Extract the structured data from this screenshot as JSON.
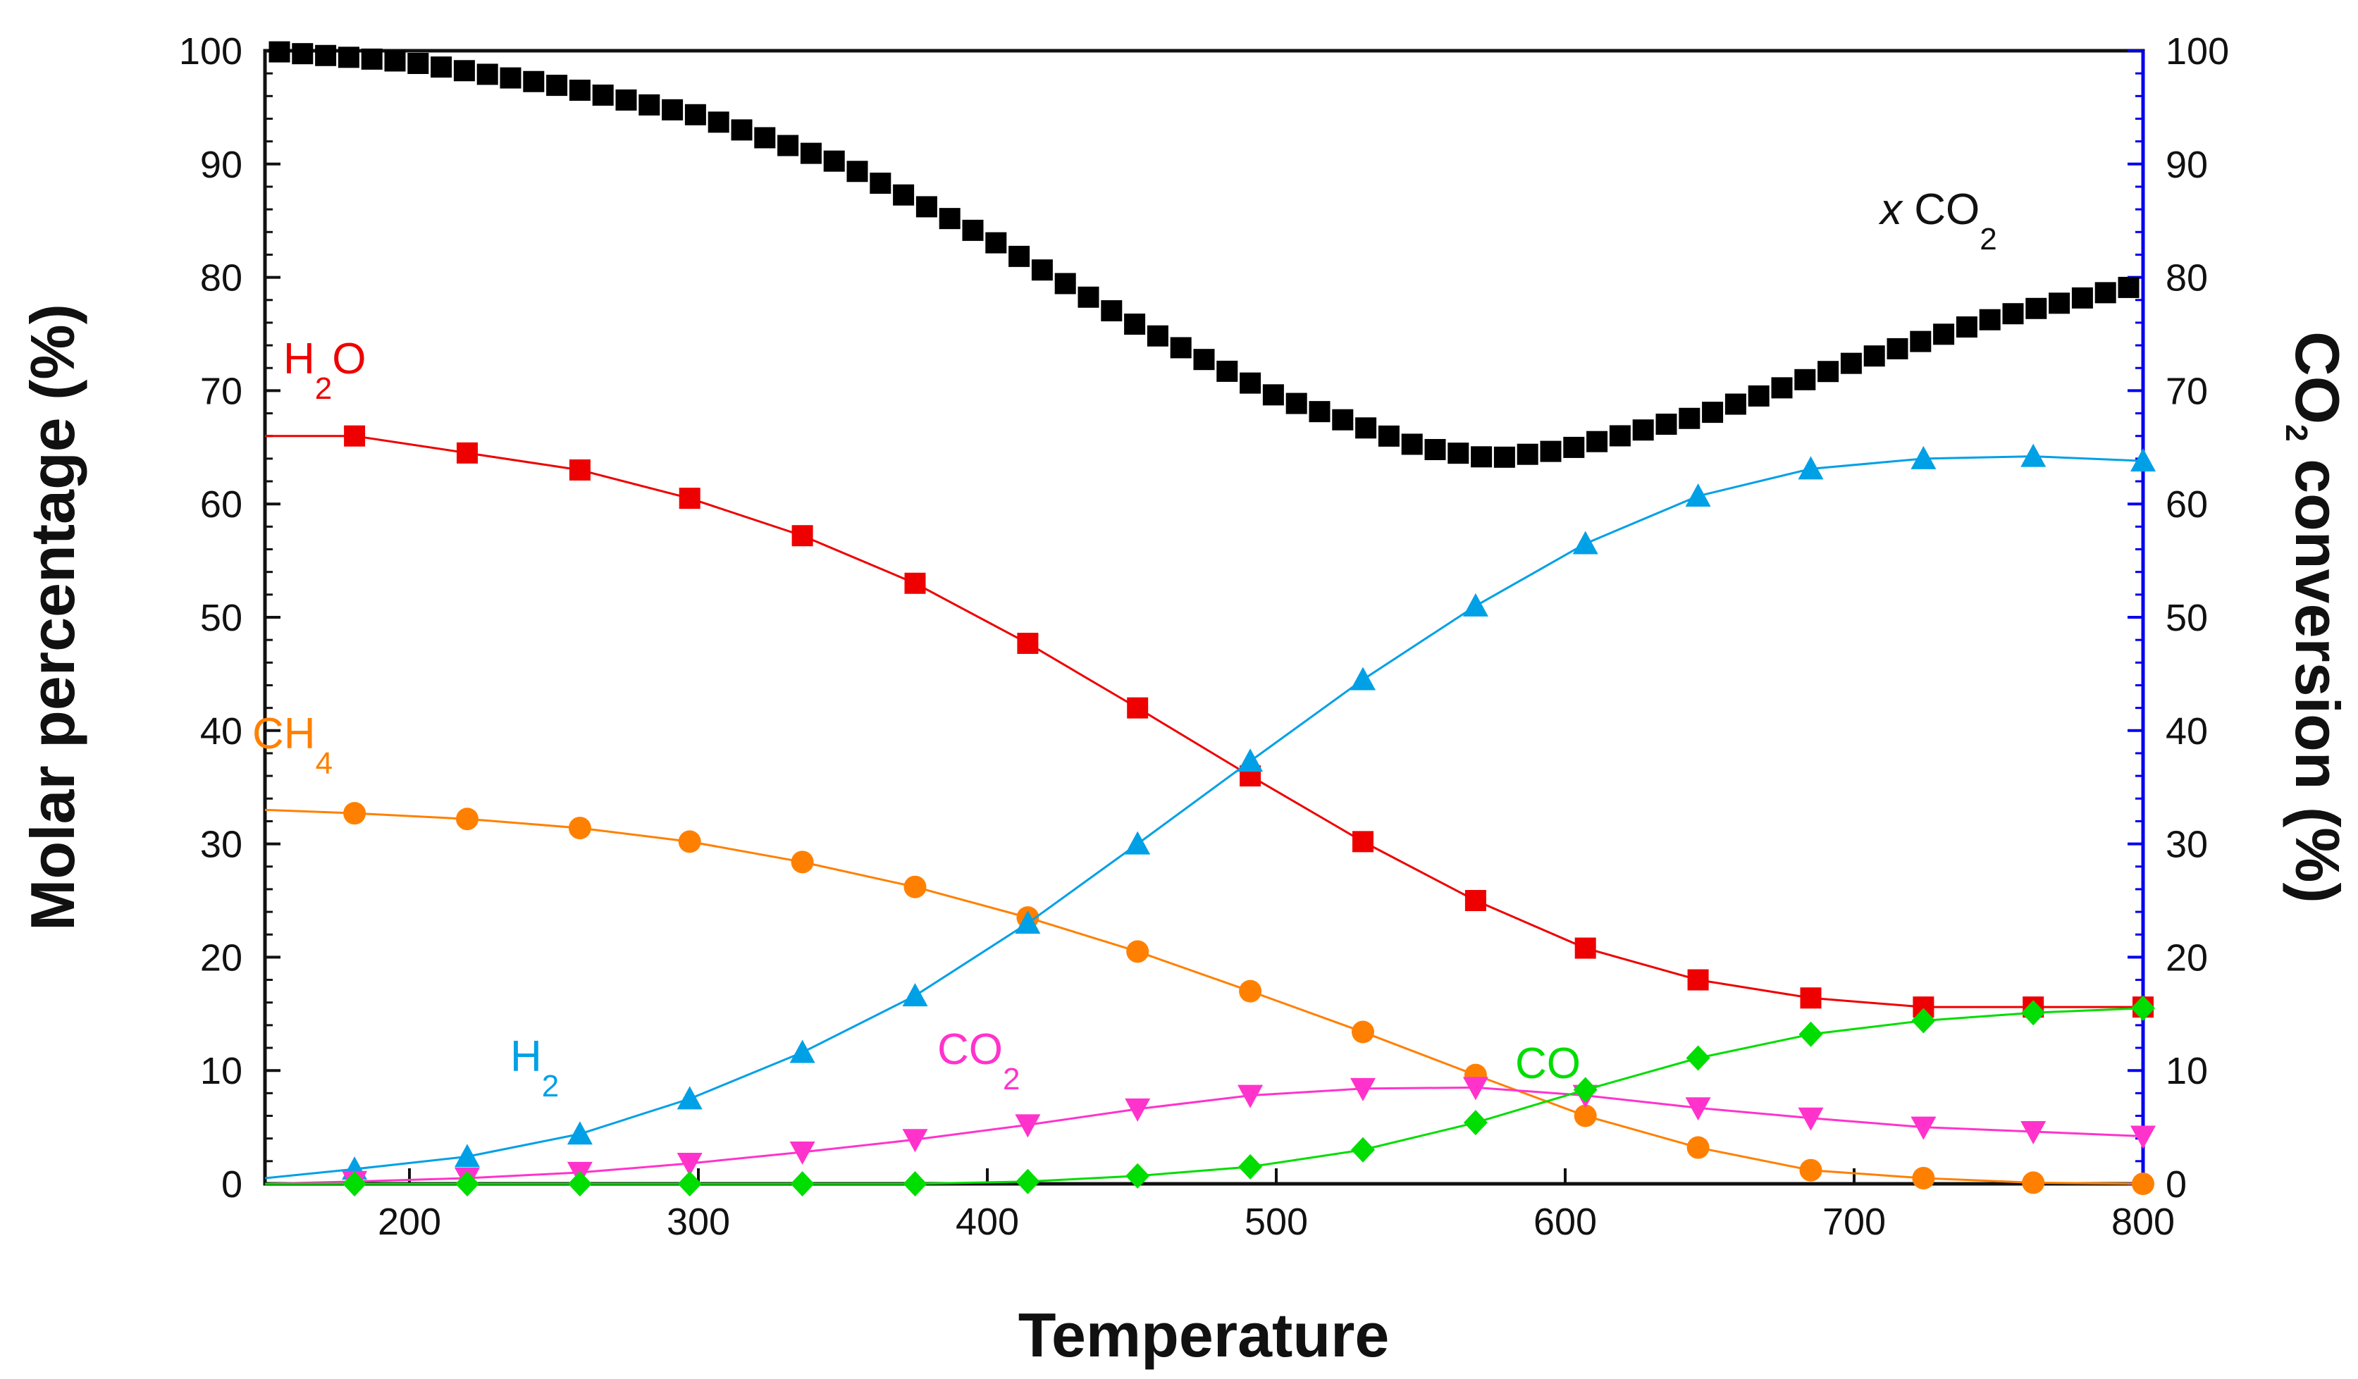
{
  "chart_data": {
    "type": "line",
    "xlabel": "Temperature",
    "ylabel_left": "Molar percentage (%)",
    "ylabel_right": {
      "main": "CO",
      "sub": "2",
      "rest": " conversion (%)"
    },
    "xlim": [
      150,
      800
    ],
    "ylim": [
      0,
      100
    ],
    "x_ticks": [
      200,
      300,
      400,
      500,
      600,
      700,
      800
    ],
    "y_ticks": [
      0,
      10,
      20,
      30,
      40,
      50,
      60,
      70,
      80,
      90,
      100
    ],
    "right_axis_color": "#0000ee",
    "x": [
      181,
      220,
      259,
      297,
      336,
      375,
      414,
      452,
      491,
      530,
      569,
      607,
      646,
      685,
      724,
      762,
      800
    ],
    "series": [
      {
        "name": "H2O",
        "color": "#ee0000",
        "marker": "square",
        "labels": [
          {
            "main": "H",
            "sub": "2",
            "rest": "O"
          }
        ],
        "start": [
          150,
          66
        ],
        "values": [
          66,
          64.5,
          63,
          60.5,
          57.2,
          53,
          47.7,
          42,
          36,
          30.2,
          25,
          20.8,
          18,
          16.4,
          15.6,
          15.6,
          15.6
        ]
      },
      {
        "name": "CH4",
        "color": "#ff8000",
        "marker": "circle",
        "labels": [
          {
            "main": "CH",
            "sub": "4",
            "rest": ""
          }
        ],
        "start": [
          150,
          33
        ],
        "values": [
          32.7,
          32.2,
          31.4,
          30.2,
          28.4,
          26.2,
          23.5,
          20.5,
          17,
          13.4,
          9.6,
          6,
          3.2,
          1.2,
          0.5,
          0.1,
          0
        ]
      },
      {
        "name": "H2",
        "color": "#00a0e6",
        "marker": "triangle-up",
        "labels": [
          {
            "main": "H",
            "sub": "2",
            "rest": ""
          }
        ],
        "start": [
          150,
          0.5
        ],
        "values": [
          1.3,
          2.4,
          4.4,
          7.5,
          11.6,
          16.6,
          23,
          30,
          37.3,
          44.5,
          51,
          56.5,
          60.7,
          63.1,
          64,
          64.2,
          63.8
        ]
      },
      {
        "name": "CO2",
        "color": "#ff33cc",
        "marker": "triangle-down",
        "labels": [
          {
            "main": "CO",
            "sub": "2",
            "rest": ""
          }
        ],
        "start": [
          150,
          0
        ],
        "values": [
          0.2,
          0.5,
          1,
          1.8,
          2.8,
          3.9,
          5.2,
          6.6,
          7.8,
          8.4,
          8.5,
          7.8,
          6.7,
          5.8,
          5,
          4.6,
          4.2
        ]
      },
      {
        "name": "CO",
        "color": "#00dd00",
        "marker": "diamond",
        "labels": [
          {
            "main": "CO",
            "sub": "",
            "rest": ""
          }
        ],
        "start": [
          150,
          0
        ],
        "values": [
          0,
          0,
          0,
          0,
          0,
          0,
          0.2,
          0.7,
          1.5,
          3,
          5.4,
          8.3,
          11.1,
          13.2,
          14.4,
          15.1,
          15.5
        ]
      }
    ],
    "conversion_series": {
      "name": "x CO2",
      "axis": "right",
      "color": "#000000",
      "marker": "square",
      "label": {
        "prefix": "x",
        "main": " CO",
        "sub": "2"
      },
      "x_start": 155,
      "x_end": 800,
      "x_step": 8,
      "curve": [
        [
          150,
          100
        ],
        [
          200,
          99
        ],
        [
          250,
          97
        ],
        [
          300,
          94.3
        ],
        [
          350,
          90
        ],
        [
          400,
          83.5
        ],
        [
          450,
          76
        ],
        [
          500,
          69.5
        ],
        [
          550,
          65
        ],
        [
          575,
          64
        ],
        [
          600,
          64.8
        ],
        [
          650,
          68
        ],
        [
          700,
          72.5
        ],
        [
          750,
          76.5
        ],
        [
          800,
          79.4
        ]
      ]
    }
  }
}
